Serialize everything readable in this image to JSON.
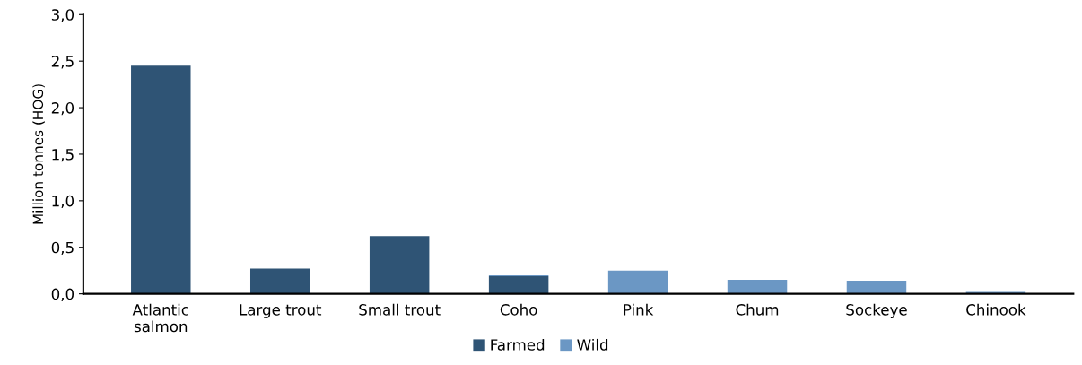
{
  "chart_data": {
    "type": "bar",
    "stacked": true,
    "ylabel": "Million tonnes (HOG)",
    "categories": [
      "Atlantic\nsalmon",
      "Large trout",
      "Small trout",
      "Coho",
      "Pink",
      "Chum",
      "Sockeye",
      "Chinook"
    ],
    "series": [
      {
        "name": "Farmed",
        "color": "#2f5475",
        "values": [
          2.45,
          0.27,
          0.62,
          0.19,
          null,
          null,
          null,
          null
        ]
      },
      {
        "name": "Wild",
        "color": "#6b97c4",
        "values": [
          null,
          null,
          null,
          0.01,
          0.25,
          0.15,
          0.14,
          0.02
        ]
      }
    ],
    "ylim": [
      0,
      3
    ],
    "yticks": [
      {
        "value": 0,
        "label": "0,0"
      },
      {
        "value": 0.5,
        "label": "0,5"
      },
      {
        "value": 1,
        "label": "1,0"
      },
      {
        "value": 1.5,
        "label": "1,5"
      },
      {
        "value": 2,
        "label": "2,0"
      },
      {
        "value": 2.5,
        "label": "2,5"
      },
      {
        "value": 3,
        "label": "3,0"
      }
    ],
    "grid": false,
    "legend": "bottom"
  }
}
